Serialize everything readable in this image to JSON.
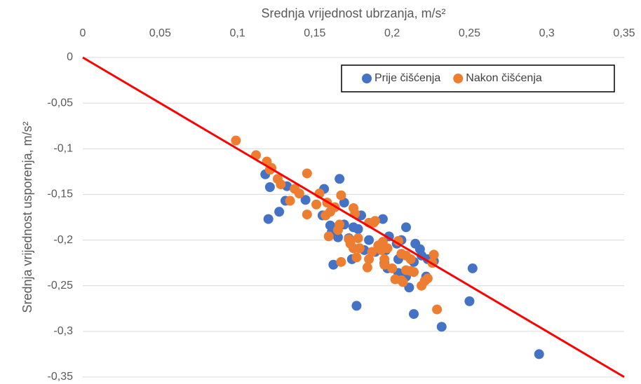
{
  "chart_data": {
    "type": "scatter",
    "x_label": "Srednja vrijednost ubrzanja, m/s²",
    "y_label": "Srednja vrijednost usporenja, m/s²",
    "xlim": [
      0,
      0.35
    ],
    "ylim": [
      -0.35,
      0
    ],
    "xticks": [
      0,
      {
        "value": 0.05,
        "label": "0,05"
      },
      {
        "value": 0.1,
        "label": "0,1"
      },
      {
        "value": 0.15,
        "label": "0,15"
      },
      {
        "value": 0.2,
        "label": "0,2"
      },
      {
        "value": 0.25,
        "label": "0,25"
      },
      {
        "value": 0.3,
        "label": "0,3"
      },
      {
        "value": 0.35,
        "label": "0,35"
      }
    ],
    "yticks": [
      0,
      {
        "value": -0.05,
        "label": "-0,05"
      },
      {
        "value": -0.1,
        "label": "-0,1"
      },
      {
        "value": -0.15,
        "label": "-0,15"
      },
      {
        "value": -0.2,
        "label": "-0,2"
      },
      {
        "value": -0.25,
        "label": "-0,25"
      },
      {
        "value": -0.3,
        "label": "-0,3"
      },
      {
        "value": -0.35,
        "label": "-0,35"
      }
    ],
    "grid": true,
    "legend": "upper right",
    "trendline": {
      "x": [
        0,
        0.35
      ],
      "y": [
        0,
        -0.35
      ],
      "color": "#ff0000"
    },
    "series": [
      {
        "name": "Prije čišćenja",
        "color": "#4472c4",
        "x": [
          0.118,
          0.121,
          0.12,
          0.127,
          0.132,
          0.131,
          0.144,
          0.156,
          0.166,
          0.169,
          0.155,
          0.16,
          0.161,
          0.169,
          0.165,
          0.162,
          0.172,
          0.175,
          0.178,
          0.18,
          0.177,
          0.174,
          0.182,
          0.185,
          0.189,
          0.194,
          0.196,
          0.198,
          0.203,
          0.206,
          0.209,
          0.204,
          0.209,
          0.211,
          0.204,
          0.215,
          0.218,
          0.219,
          0.214,
          0.223,
          0.227,
          0.222,
          0.214,
          0.232,
          0.25,
          0.252,
          0.295,
          0.197,
          0.195
        ],
        "values": [
          -0.128,
          -0.142,
          -0.177,
          -0.169,
          -0.141,
          -0.157,
          -0.156,
          -0.144,
          -0.133,
          -0.159,
          -0.173,
          -0.184,
          -0.191,
          -0.183,
          -0.197,
          -0.227,
          -0.198,
          -0.186,
          -0.188,
          -0.173,
          -0.272,
          -0.221,
          -0.211,
          -0.2,
          -0.213,
          -0.177,
          -0.211,
          -0.196,
          -0.204,
          -0.2,
          -0.186,
          -0.221,
          -0.24,
          -0.252,
          -0.236,
          -0.204,
          -0.21,
          -0.217,
          -0.224,
          -0.221,
          -0.223,
          -0.24,
          -0.281,
          -0.295,
          -0.267,
          -0.231,
          -0.325,
          -0.231,
          -0.225
        ]
      },
      {
        "name": "Nakon čišćenja",
        "color": "#ed7d31",
        "x": [
          0.099,
          0.112,
          0.119,
          0.122,
          0.121,
          0.126,
          0.128,
          0.134,
          0.137,
          0.14,
          0.145,
          0.145,
          0.151,
          0.153,
          0.158,
          0.157,
          0.16,
          0.163,
          0.167,
          0.159,
          0.165,
          0.166,
          0.167,
          0.172,
          0.173,
          0.175,
          0.175,
          0.176,
          0.178,
          0.179,
          0.177,
          0.185,
          0.188,
          0.189,
          0.185,
          0.187,
          0.184,
          0.191,
          0.194,
          0.193,
          0.195,
          0.195,
          0.197,
          0.2,
          0.202,
          0.206,
          0.207,
          0.206,
          0.209,
          0.209,
          0.212,
          0.212,
          0.214,
          0.219,
          0.221,
          0.223,
          0.227,
          0.226,
          0.229,
          0.204
        ],
        "values": [
          -0.091,
          -0.107,
          -0.114,
          -0.121,
          -0.123,
          -0.133,
          -0.139,
          -0.157,
          -0.144,
          -0.149,
          -0.127,
          -0.172,
          -0.161,
          -0.149,
          -0.159,
          -0.173,
          -0.169,
          -0.164,
          -0.151,
          -0.196,
          -0.189,
          -0.183,
          -0.224,
          -0.199,
          -0.204,
          -0.209,
          -0.165,
          -0.171,
          -0.198,
          -0.209,
          -0.219,
          -0.181,
          -0.181,
          -0.179,
          -0.221,
          -0.213,
          -0.23,
          -0.206,
          -0.202,
          -0.211,
          -0.221,
          -0.227,
          -0.209,
          -0.231,
          -0.243,
          -0.244,
          -0.246,
          -0.215,
          -0.233,
          -0.217,
          -0.221,
          -0.234,
          -0.235,
          -0.25,
          -0.245,
          -0.242,
          -0.216,
          -0.225,
          -0.276,
          -0.201
        ]
      }
    ]
  }
}
